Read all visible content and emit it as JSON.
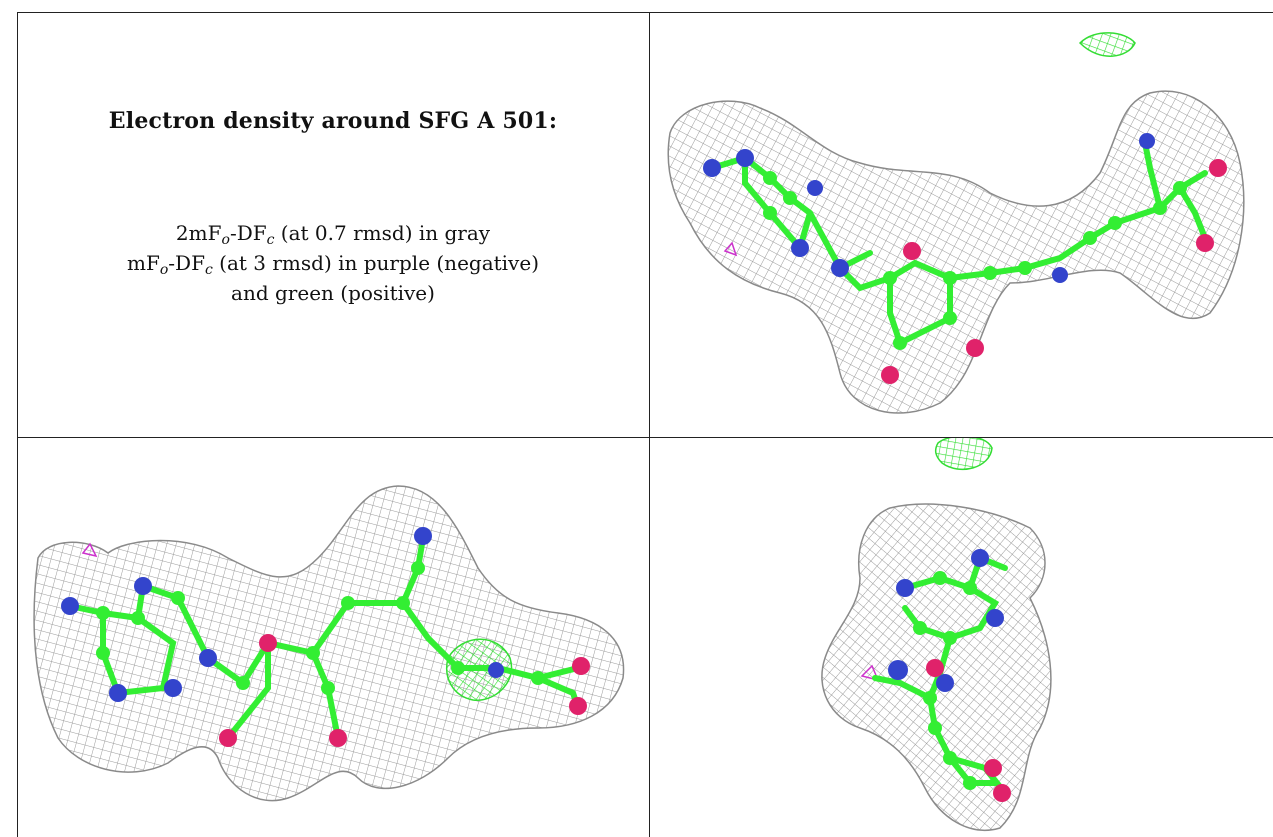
{
  "caption": {
    "title": "Electron density around SFG A 501:",
    "line1": {
      "prefix": "2mF",
      "sub1": "o",
      "mid": "-DF",
      "sub2": "c",
      "suffix": " (at 0.7 rmsd) in gray"
    },
    "line2": {
      "prefix": "mF",
      "sub1": "o",
      "mid": "-DF",
      "sub2": "c",
      "suffix": " (at 3 rmsd) in purple (negative)"
    },
    "line3": "and green (positive)"
  },
  "colors": {
    "mesh_gray": "#9a9a9a",
    "carbon_green": "#33ee33",
    "nitrogen_blue": "#3344cc",
    "oxygen_red": "#e0226a",
    "positive_green": "#33dd33",
    "negative_purple": "#cc33cc"
  }
}
